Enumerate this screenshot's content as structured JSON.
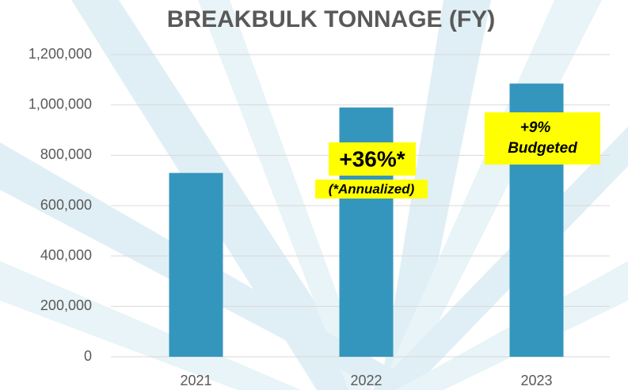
{
  "chart_data": {
    "type": "bar",
    "title": "BREAKBULK TONNAGE (FY)",
    "categories": [
      "2021",
      "2022",
      "2023"
    ],
    "values": [
      730000,
      990000,
      1085000
    ],
    "color": "#3596bd",
    "ylim": [
      0,
      1200000
    ],
    "yticks": [
      0,
      {
        "value": 200000,
        "label": "200,000"
      },
      {
        "value": 400000,
        "label": "400,000"
      },
      {
        "value": 600000,
        "label": "600,000"
      },
      {
        "value": 800000,
        "label": "800,000"
      },
      {
        "value": 1000000,
        "label": "1,000,000"
      },
      {
        "value": 1200000,
        "label": "1,200,000"
      }
    ],
    "grid": true,
    "annotations": [
      "+36%*",
      "(*Annualized)",
      "+9%",
      "Budgeted"
    ]
  }
}
